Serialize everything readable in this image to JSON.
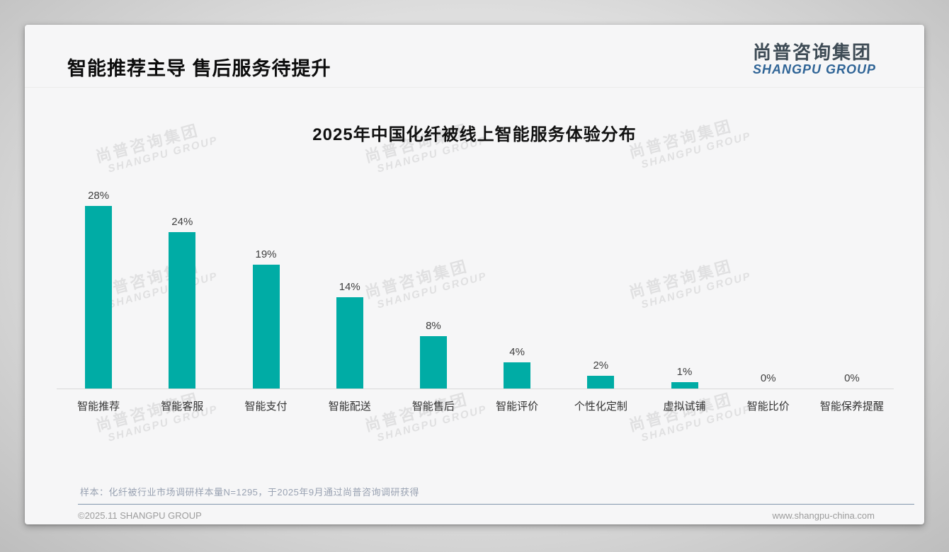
{
  "page_title": "智能推荐主导 售后服务待提升",
  "logo": {
    "zh": "尚普咨询集团",
    "en": "SHANGPU GROUP"
  },
  "watermark": {
    "zh": "尚普咨询集团",
    "en": "SHANGPU GROUP"
  },
  "note": "样本：化纤被行业市场调研样本量N=1295，于2025年9月通过尚普咨询调研获得",
  "footer": {
    "copyright": "©2025.11 SHANGPU GROUP",
    "website": "www.shangpu-china.com"
  },
  "chart_data": {
    "type": "bar",
    "title": "2025年中国化纤被线上智能服务体验分布",
    "categories": [
      "智能推荐",
      "智能客服",
      "智能支付",
      "智能配送",
      "智能售后",
      "智能评价",
      "个性化定制",
      "虚拟试铺",
      "智能比价",
      "智能保养提醒"
    ],
    "values": [
      28,
      24,
      19,
      14,
      8,
      4,
      2,
      1,
      0,
      0
    ],
    "value_labels": [
      "28%",
      "24%",
      "19%",
      "14%",
      "8%",
      "4%",
      "2%",
      "1%",
      "0%",
      "0%"
    ],
    "unit": "%",
    "xlabel": "",
    "ylabel": "",
    "ylim": [
      0,
      30
    ],
    "bar_color": "#00ACA5",
    "grid": false,
    "legend": false,
    "value_label_position": "above-bar"
  }
}
